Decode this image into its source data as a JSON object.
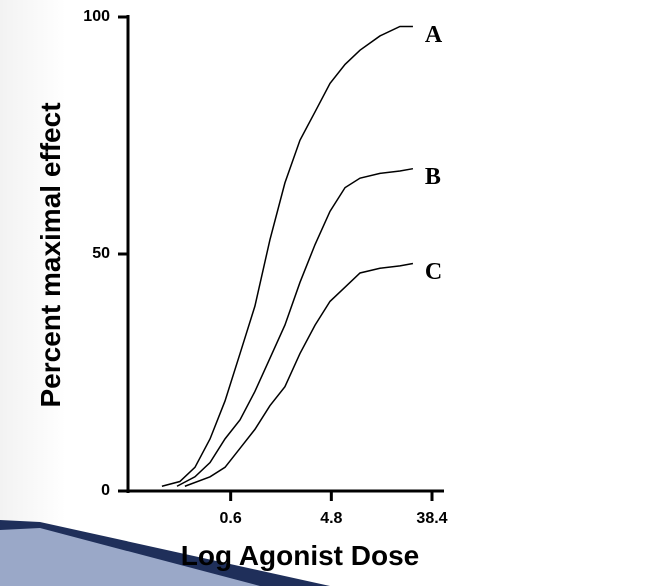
{
  "chart_data": {
    "type": "line",
    "xlabel": "Log Agonist Dose",
    "ylabel": "Percent maximal effect",
    "xscale": "log",
    "xlim": [
      0.075,
      38.4
    ],
    "xticks": [
      0.6,
      4.8,
      38.4
    ],
    "ylim": [
      0,
      100
    ],
    "yticks": [
      0,
      50,
      100
    ],
    "color": "#000000",
    "series": [
      {
        "name": "A",
        "x": [
          0.145,
          0.21,
          0.287,
          0.392,
          0.534,
          0.728,
          0.99,
          1.35,
          1.84,
          2.51,
          3.43,
          4.67,
          6.37,
          8.68,
          13.1,
          19.8,
          25.9
        ],
        "values": [
          1,
          2,
          5,
          11,
          19,
          29,
          39,
          53,
          65,
          74,
          80,
          86,
          90,
          93,
          96,
          98,
          98
        ]
      },
      {
        "name": "B",
        "x": [
          0.198,
          0.287,
          0.392,
          0.534,
          0.728,
          0.99,
          1.35,
          1.84,
          2.51,
          3.43,
          4.67,
          6.37,
          8.68,
          13.1,
          19.8,
          25.9
        ],
        "values": [
          1,
          3,
          6,
          11,
          15,
          21,
          28,
          35,
          44,
          52,
          59,
          64,
          66,
          67,
          67.5,
          68
        ]
      },
      {
        "name": "C",
        "x": [
          0.233,
          0.392,
          0.534,
          0.728,
          0.99,
          1.35,
          1.84,
          2.51,
          3.43,
          4.67,
          6.37,
          8.68,
          13.1,
          19.8,
          25.9
        ],
        "values": [
          1,
          3,
          5,
          9,
          13,
          18,
          22,
          29,
          35,
          40,
          43,
          46,
          47,
          47.5,
          48
        ]
      }
    ]
  }
}
